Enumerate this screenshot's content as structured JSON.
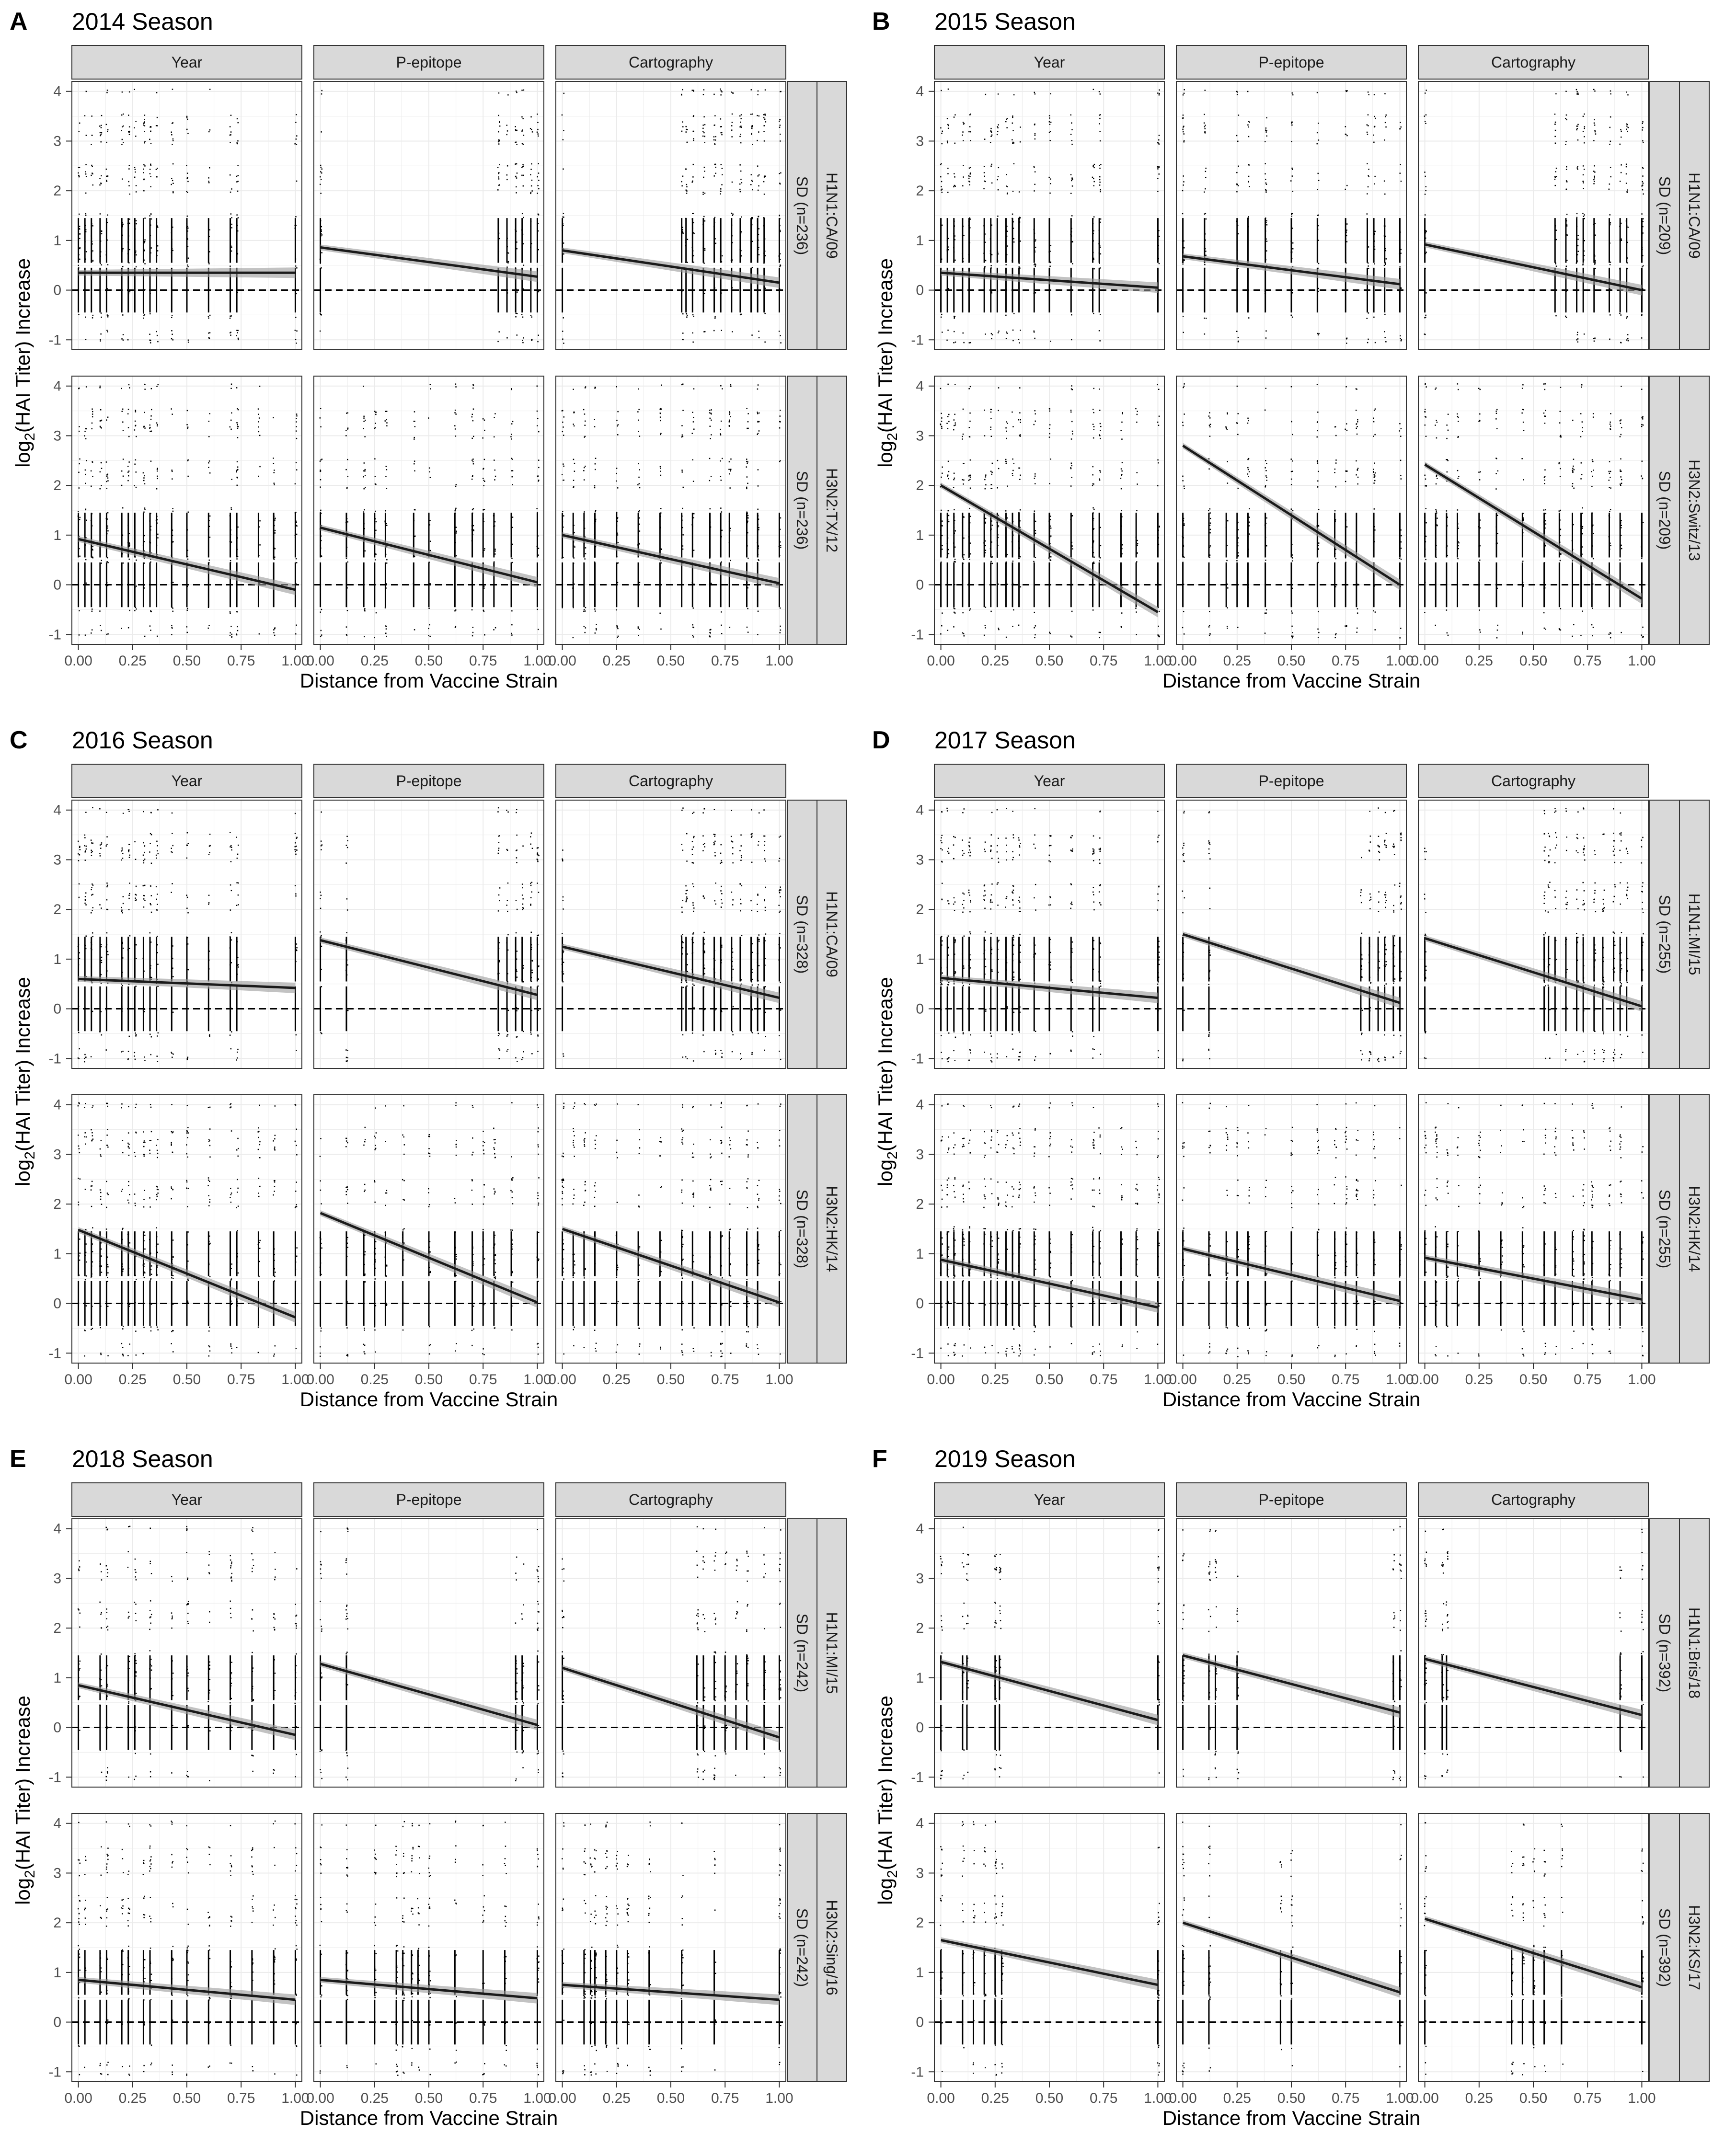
{
  "figure": {
    "x_axis_title": "Distance from Vaccine Strain",
    "y_axis_title_prefix": "log",
    "y_axis_title_sub": "2",
    "y_axis_title_suffix": "(HAI Titer) Increase",
    "facet_columns": [
      "Year",
      "P-epitope",
      "Cartography"
    ],
    "x_tick_labels": [
      "0.00",
      "0.25",
      "0.50",
      "0.75",
      "1.00"
    ],
    "x_ticks": [
      0,
      0.25,
      0.5,
      0.75,
      1.0
    ],
    "y_tick_labels": [
      "-1",
      "0",
      "1",
      "2",
      "3",
      "4"
    ],
    "y_ticks": [
      -1,
      0,
      1,
      2,
      3,
      4
    ],
    "xlim": [
      -0.03,
      1.03
    ],
    "ylim": [
      -1.2,
      4.2
    ],
    "colors": {
      "strip_fill": "#d9d9d9",
      "grid": "#ebebeb",
      "points": "#000000",
      "fit_line": "#1a1a1a",
      "ribbon": "#999999"
    }
  },
  "chart_data": [
    {
      "type": "scatter",
      "panel": "A",
      "title": "2014 Season",
      "rows": [
        {
          "group": "SD (n=236)",
          "strain": "H1N1:CA/09",
          "xvals": {
            "Year": [
              0.0,
              0.03,
              0.06,
              0.1,
              0.13,
              0.2,
              0.23,
              0.26,
              0.3,
              0.33,
              0.36,
              0.43,
              0.5,
              0.6,
              0.7,
              0.73,
              1.0
            ],
            "P-epitope": [
              0.0,
              0.82,
              0.86,
              0.9,
              0.93,
              0.97,
              1.0
            ],
            "Cartography": [
              0.0,
              0.55,
              0.57,
              0.6,
              0.65,
              0.7,
              0.73,
              0.78,
              0.82,
              0.87,
              0.9,
              0.93,
              1.0
            ]
          },
          "fits": {
            "Year": [
              0.35,
              0.35
            ],
            "P-epitope": [
              0.86,
              0.27
            ],
            "Cartography": [
              0.8,
              0.15
            ]
          }
        },
        {
          "group": "SD (n=236)",
          "strain": "H3N2:TX/12",
          "xvals": {
            "Year": [
              0.0,
              0.03,
              0.06,
              0.1,
              0.13,
              0.2,
              0.23,
              0.26,
              0.3,
              0.33,
              0.36,
              0.43,
              0.5,
              0.6,
              0.7,
              0.73,
              0.83,
              0.9,
              1.0
            ],
            "P-epitope": [
              0.0,
              0.12,
              0.2,
              0.25,
              0.3,
              0.43,
              0.5,
              0.62,
              0.7,
              0.75,
              0.8,
              0.88,
              1.0
            ],
            "Cartography": [
              0.0,
              0.05,
              0.1,
              0.15,
              0.25,
              0.35,
              0.45,
              0.55,
              0.6,
              0.68,
              0.73,
              0.77,
              0.85,
              0.9,
              1.0
            ]
          },
          "fits": {
            "Year": [
              0.92,
              -0.1
            ],
            "P-epitope": [
              1.15,
              0.05
            ],
            "Cartography": [
              1.0,
              0.03
            ]
          }
        }
      ]
    },
    {
      "type": "scatter",
      "panel": "B",
      "title": "2015 Season",
      "rows": [
        {
          "group": "SD (n=209)",
          "strain": "H1N1:CA/09",
          "xvals": {
            "Year": [
              0.0,
              0.03,
              0.06,
              0.1,
              0.13,
              0.2,
              0.23,
              0.26,
              0.3,
              0.33,
              0.36,
              0.43,
              0.5,
              0.6,
              0.7,
              0.73,
              1.0
            ],
            "P-epitope": [
              0.0,
              0.1,
              0.25,
              0.3,
              0.38,
              0.5,
              0.62,
              0.75,
              0.85,
              0.88,
              0.93,
              1.0
            ],
            "Cartography": [
              0.0,
              0.6,
              0.65,
              0.7,
              0.73,
              0.78,
              0.85,
              0.9,
              0.93,
              1.0
            ]
          },
          "fits": {
            "Year": [
              0.35,
              0.05
            ],
            "P-epitope": [
              0.68,
              0.12
            ],
            "Cartography": [
              0.92,
              0.0
            ]
          }
        },
        {
          "group": "SD (n=209)",
          "strain": "H3N2:Switz/13",
          "xvals": {
            "Year": [
              0.0,
              0.03,
              0.06,
              0.1,
              0.13,
              0.2,
              0.23,
              0.26,
              0.3,
              0.33,
              0.36,
              0.43,
              0.5,
              0.6,
              0.7,
              0.73,
              0.83,
              0.9,
              1.0
            ],
            "P-epitope": [
              0.0,
              0.12,
              0.2,
              0.25,
              0.3,
              0.38,
              0.5,
              0.62,
              0.7,
              0.75,
              0.8,
              0.88,
              1.0
            ],
            "Cartography": [
              0.0,
              0.05,
              0.1,
              0.15,
              0.25,
              0.33,
              0.45,
              0.55,
              0.62,
              0.68,
              0.72,
              0.77,
              0.85,
              0.9,
              1.0
            ]
          },
          "fits": {
            "Year": [
              2.0,
              -0.55
            ],
            "P-epitope": [
              2.8,
              0.0
            ],
            "Cartography": [
              2.42,
              -0.28
            ]
          }
        }
      ]
    },
    {
      "type": "scatter",
      "panel": "C",
      "title": "2016 Season",
      "rows": [
        {
          "group": "SD (n=328)",
          "strain": "H1N1:CA/09",
          "xvals": {
            "Year": [
              0.0,
              0.03,
              0.06,
              0.1,
              0.13,
              0.2,
              0.23,
              0.26,
              0.3,
              0.33,
              0.36,
              0.43,
              0.5,
              0.6,
              0.7,
              0.73,
              1.0
            ],
            "P-epitope": [
              0.0,
              0.12,
              0.82,
              0.86,
              0.9,
              0.93,
              0.97,
              1.0
            ],
            "Cartography": [
              0.0,
              0.55,
              0.57,
              0.6,
              0.65,
              0.7,
              0.73,
              0.78,
              0.82,
              0.87,
              0.9,
              0.93,
              1.0
            ]
          },
          "fits": {
            "Year": [
              0.6,
              0.42
            ],
            "P-epitope": [
              1.38,
              0.28
            ],
            "Cartography": [
              1.25,
              0.22
            ]
          }
        },
        {
          "group": "SD (n=328)",
          "strain": "H3N2:HK/14",
          "xvals": {
            "Year": [
              0.0,
              0.03,
              0.06,
              0.1,
              0.13,
              0.2,
              0.23,
              0.26,
              0.3,
              0.33,
              0.36,
              0.43,
              0.5,
              0.6,
              0.7,
              0.73,
              0.83,
              0.9,
              1.0
            ],
            "P-epitope": [
              0.0,
              0.12,
              0.2,
              0.25,
              0.3,
              0.38,
              0.5,
              0.62,
              0.7,
              0.75,
              0.8,
              0.88,
              1.0
            ],
            "Cartography": [
              0.0,
              0.05,
              0.1,
              0.15,
              0.25,
              0.35,
              0.45,
              0.55,
              0.6,
              0.68,
              0.73,
              0.77,
              0.85,
              0.9,
              1.0
            ]
          },
          "fits": {
            "Year": [
              1.48,
              -0.28
            ],
            "P-epitope": [
              1.82,
              0.02
            ],
            "Cartography": [
              1.5,
              0.02
            ]
          }
        }
      ]
    },
    {
      "type": "scatter",
      "panel": "D",
      "title": "2017 Season",
      "rows": [
        {
          "group": "SD (n=255)",
          "strain": "H1N1:MI/15",
          "xvals": {
            "Year": [
              0.0,
              0.03,
              0.06,
              0.1,
              0.13,
              0.2,
              0.23,
              0.26,
              0.3,
              0.33,
              0.36,
              0.43,
              0.5,
              0.6,
              0.7,
              0.73,
              1.0
            ],
            "P-epitope": [
              0.0,
              0.12,
              0.82,
              0.86,
              0.9,
              0.93,
              0.97,
              1.0
            ],
            "Cartography": [
              0.0,
              0.55,
              0.57,
              0.6,
              0.65,
              0.7,
              0.73,
              0.78,
              0.82,
              0.87,
              0.9,
              0.93,
              1.0
            ]
          },
          "fits": {
            "Year": [
              0.62,
              0.22
            ],
            "P-epitope": [
              1.5,
              0.12
            ],
            "Cartography": [
              1.42,
              0.05
            ]
          }
        },
        {
          "group": "SD (n=255)",
          "strain": "H3N2:HK/14",
          "xvals": {
            "Year": [
              0.0,
              0.03,
              0.06,
              0.1,
              0.13,
              0.2,
              0.23,
              0.26,
              0.3,
              0.33,
              0.36,
              0.43,
              0.5,
              0.6,
              0.7,
              0.73,
              0.83,
              0.9,
              1.0
            ],
            "P-epitope": [
              0.0,
              0.12,
              0.2,
              0.25,
              0.3,
              0.38,
              0.5,
              0.62,
              0.7,
              0.75,
              0.8,
              0.88,
              1.0
            ],
            "Cartography": [
              0.0,
              0.05,
              0.1,
              0.15,
              0.25,
              0.35,
              0.45,
              0.55,
              0.6,
              0.68,
              0.73,
              0.77,
              0.85,
              0.9,
              1.0
            ]
          },
          "fits": {
            "Year": [
              0.88,
              -0.08
            ],
            "P-epitope": [
              1.1,
              0.05
            ],
            "Cartography": [
              0.92,
              0.08
            ]
          }
        }
      ]
    },
    {
      "type": "scatter",
      "panel": "E",
      "title": "2018 Season",
      "rows": [
        {
          "group": "SD (n=242)",
          "strain": "H1N1:MI/15",
          "xvals": {
            "Year": [
              0.0,
              0.1,
              0.13,
              0.23,
              0.26,
              0.33,
              0.43,
              0.5,
              0.6,
              0.7,
              0.8,
              0.9,
              1.0
            ],
            "P-epitope": [
              0.0,
              0.12,
              0.9,
              0.93,
              1.0
            ],
            "Cartography": [
              0.0,
              0.62,
              0.65,
              0.7,
              0.75,
              0.8,
              0.85,
              0.93,
              1.0
            ]
          },
          "fits": {
            "Year": [
              0.85,
              -0.15
            ],
            "P-epitope": [
              1.28,
              0.05
            ],
            "Cartography": [
              1.2,
              -0.2
            ]
          }
        },
        {
          "group": "SD (n=242)",
          "strain": "H3N2:Sing/16",
          "xvals": {
            "Year": [
              0.0,
              0.03,
              0.1,
              0.13,
              0.2,
              0.23,
              0.3,
              0.33,
              0.43,
              0.5,
              0.6,
              0.7,
              0.8,
              0.9,
              1.0
            ],
            "P-epitope": [
              0.0,
              0.12,
              0.25,
              0.35,
              0.38,
              0.42,
              0.45,
              0.5,
              0.62,
              0.75,
              0.85,
              1.0
            ],
            "Cartography": [
              0.0,
              0.1,
              0.13,
              0.15,
              0.2,
              0.25,
              0.3,
              0.4,
              0.55,
              0.7,
              1.0
            ]
          },
          "fits": {
            "Year": [
              0.85,
              0.45
            ],
            "P-epitope": [
              0.85,
              0.48
            ],
            "Cartography": [
              0.75,
              0.45
            ]
          }
        }
      ]
    },
    {
      "type": "scatter",
      "panel": "F",
      "title": "2019 Season",
      "rows": [
        {
          "group": "SD (n=392)",
          "strain": "H1N1:Bris/18",
          "xvals": {
            "Year": [
              0.0,
              0.1,
              0.12,
              0.25,
              0.27,
              1.0
            ],
            "P-epitope": [
              0.0,
              0.12,
              0.15,
              0.25,
              0.97,
              1.0
            ],
            "Cartography": [
              0.0,
              0.08,
              0.1,
              0.9,
              1.0
            ]
          },
          "fits": {
            "Year": [
              1.32,
              0.15
            ],
            "P-epitope": [
              1.45,
              0.3
            ],
            "Cartography": [
              1.38,
              0.25
            ]
          }
        },
        {
          "group": "SD (n=392)",
          "strain": "H3N2:KS/17",
          "xvals": {
            "Year": [
              0.0,
              0.1,
              0.15,
              0.2,
              0.25,
              0.28,
              1.0
            ],
            "P-epitope": [
              0.0,
              0.12,
              0.45,
              0.5,
              1.0
            ],
            "Cartography": [
              0.0,
              0.4,
              0.45,
              0.5,
              0.55,
              0.63,
              1.0
            ]
          },
          "fits": {
            "Year": [
              1.65,
              0.75
            ],
            "P-epitope": [
              2.0,
              0.6
            ],
            "Cartography": [
              2.08,
              0.7
            ]
          }
        }
      ]
    }
  ]
}
